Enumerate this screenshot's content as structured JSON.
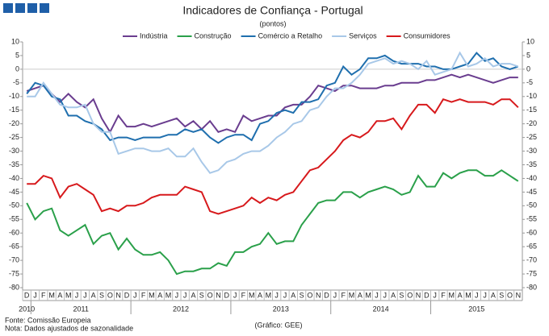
{
  "chart_data": {
    "type": "line",
    "title": "Indicadores de Confiança - Portugal",
    "subtitle": "(pontos)",
    "categories": [
      "D",
      "J",
      "F",
      "M",
      "A",
      "M",
      "J",
      "J",
      "A",
      "S",
      "O",
      "N",
      "D",
      "J",
      "F",
      "M",
      "A",
      "M",
      "J",
      "J",
      "A",
      "S",
      "O",
      "N",
      "D",
      "J",
      "F",
      "M",
      "A",
      "M",
      "J",
      "J",
      "A",
      "S",
      "O",
      "N",
      "D",
      "J",
      "F",
      "M",
      "A",
      "M",
      "J",
      "J",
      "A",
      "S",
      "O",
      "N",
      "D",
      "J",
      "F",
      "M",
      "A",
      "M",
      "J",
      "J",
      "A",
      "S",
      "O",
      "N"
    ],
    "years": [
      "2010",
      "2011",
      "2011",
      "2011",
      "2011",
      "2011",
      "2011",
      "2011",
      "2011",
      "2011",
      "2011",
      "2011",
      "2011",
      "2012",
      "2012",
      "2012",
      "2012",
      "2012",
      "2012",
      "2012",
      "2012",
      "2012",
      "2012",
      "2012",
      "2012",
      "2013",
      "2013",
      "2013",
      "2013",
      "2013",
      "2013",
      "2013",
      "2013",
      "2013",
      "2013",
      "2013",
      "2013",
      "2014",
      "2014",
      "2014",
      "2014",
      "2014",
      "2014",
      "2014",
      "2014",
      "2014",
      "2014",
      "2014",
      "2014",
      "2015",
      "2015",
      "2015",
      "2015",
      "2015",
      "2015",
      "2015",
      "2015",
      "2015",
      "2015",
      "2015"
    ],
    "series": [
      {
        "name": "Indústria",
        "color": "#6a3d8f",
        "values": [
          -8,
          -7,
          -6,
          -9,
          -12,
          -9,
          -12,
          -14,
          -11,
          -18,
          -23,
          -17,
          -21,
          -21,
          -20,
          -21,
          -20,
          -19,
          -18,
          -21,
          -19,
          -22,
          -19,
          -23,
          -22,
          -23,
          -17,
          -19,
          -18,
          -17,
          -17,
          -14,
          -13,
          -13,
          -10,
          -6,
          -7,
          -8,
          -6,
          -6,
          -7,
          -7,
          -7,
          -6,
          -6,
          -5,
          -5,
          -5,
          -4,
          -4,
          -3,
          -2,
          -3,
          -2,
          -3,
          -4,
          -5,
          -4,
          -3,
          -3
        ]
      },
      {
        "name": "Construção",
        "color": "#2aa04a",
        "values": [
          -49,
          -55,
          -52,
          -51,
          -59,
          -61,
          -59,
          -57,
          -64,
          -61,
          -60,
          -66,
          -62,
          -66,
          -68,
          -68,
          -67,
          -70,
          -75,
          -74,
          -74,
          -73,
          -73,
          -71,
          -72,
          -67,
          -67,
          -65,
          -64,
          -60,
          -64,
          -63,
          -63,
          -57,
          -53,
          -49,
          -48,
          -48,
          -45,
          -45,
          -47,
          -45,
          -44,
          -43,
          -44,
          -46,
          -45,
          -39,
          -43,
          -43,
          -38,
          -40,
          -38,
          -37,
          -37,
          -39,
          -39,
          -37,
          -39,
          -41
        ]
      },
      {
        "name": "Comércio a Retalho",
        "color": "#1f6fae",
        "values": [
          -9,
          -5,
          -6,
          -10,
          -11,
          -17,
          -17,
          -19,
          -20,
          -22,
          -26,
          -25,
          -25,
          -26,
          -25,
          -25,
          -25,
          -24,
          -24,
          -22,
          -23,
          -22,
          -25,
          -27,
          -25,
          -24,
          -24,
          -26,
          -20,
          -19,
          -16,
          -15,
          -16,
          -12,
          -12,
          -11,
          -6,
          -5,
          1,
          -2,
          0,
          4,
          4,
          5,
          3,
          2,
          2,
          2,
          1,
          1,
          0,
          0,
          1,
          2,
          6,
          3,
          4,
          1,
          0,
          1
        ]
      },
      {
        "name": "Serviços",
        "color": "#a8c8e8",
        "values": [
          -10,
          -10,
          -5,
          -9,
          -13,
          -14,
          -14,
          -13,
          -20,
          -23,
          -23,
          -31,
          -30,
          -29,
          -29,
          -30,
          -30,
          -29,
          -32,
          -32,
          -29,
          -34,
          -38,
          -37,
          -34,
          -33,
          -31,
          -30,
          -30,
          -28,
          -25,
          -23,
          -20,
          -19,
          -15,
          -14,
          -10,
          -7,
          -7,
          -5,
          -2,
          2,
          3,
          4,
          2,
          3,
          2,
          0,
          3,
          -2,
          -1,
          0,
          6,
          1,
          2,
          4,
          1,
          2,
          2,
          1
        ]
      },
      {
        "name": "Consumidores",
        "color": "#d7191c",
        "values": [
          -42,
          -42,
          -39,
          -40,
          -47,
          -43,
          -42,
          -44,
          -46,
          -52,
          -51,
          -52,
          -50,
          -50,
          -49,
          -47,
          -46,
          -46,
          -46,
          -43,
          -44,
          -45,
          -52,
          -53,
          -52,
          -51,
          -50,
          -47,
          -49,
          -47,
          -48,
          -46,
          -45,
          -41,
          -37,
          -36,
          -33,
          -30,
          -26,
          -24,
          -25,
          -23,
          -19,
          -19,
          -18,
          -22,
          -17,
          -13,
          -13,
          -16,
          -11,
          -12,
          -11,
          -12,
          -12,
          -12,
          -13,
          -11,
          -11,
          -14
        ]
      }
    ],
    "ylim": [
      -80,
      10
    ],
    "yticks": [
      -80,
      -75,
      -70,
      -65,
      -60,
      -55,
      -50,
      -45,
      -40,
      -35,
      -30,
      -25,
      -20,
      -15,
      -10,
      -5,
      0,
      5,
      10
    ],
    "y2lim": [
      -80,
      10
    ],
    "y2ticks": [
      -80,
      -75,
      -70,
      -65,
      -60,
      -55,
      -50,
      -45,
      -40,
      -35,
      -30,
      -25,
      -20,
      -15,
      -10,
      -5,
      0,
      5,
      10
    ],
    "notes": [
      "Fonte: Comissão Europeia",
      "Nota: Dados ajustados de sazonalidade"
    ],
    "credit": "(Gráfico: GEE)"
  }
}
